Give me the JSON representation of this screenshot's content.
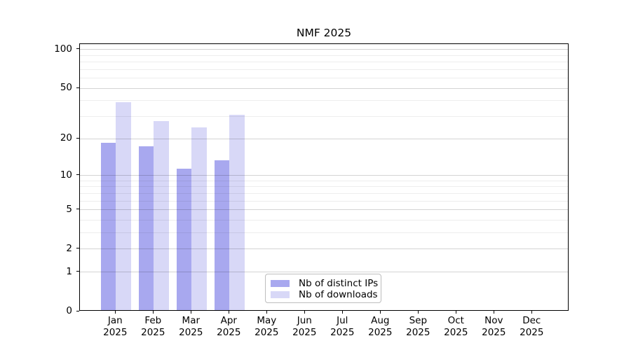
{
  "title": "NMF 2025",
  "chart_data": {
    "type": "bar",
    "title": "NMF 2025",
    "categories": [
      "Jan",
      "Feb",
      "Mar",
      "Apr",
      "May",
      "Jun",
      "Jul",
      "Aug",
      "Sep",
      "Oct",
      "Nov",
      "Dec"
    ],
    "category_year": "2025",
    "series": [
      {
        "name": "Nb of distinct IPs",
        "color": "#a8a8ef",
        "values": [
          18,
          17,
          11,
          13,
          null,
          null,
          null,
          null,
          null,
          null,
          null,
          null
        ]
      },
      {
        "name": "Nb of downloads",
        "color": "#d8d8f7",
        "values": [
          38,
          27,
          24,
          30,
          null,
          null,
          null,
          null,
          null,
          null,
          null,
          null
        ]
      }
    ],
    "xlabel": "",
    "ylabel": "",
    "yscale": "log1p",
    "ylim": [
      0,
      110
    ],
    "yticks": [
      0,
      1,
      2,
      5,
      10,
      20,
      50,
      100
    ],
    "yticks_minor": [
      3,
      4,
      6,
      7,
      8,
      9,
      30,
      40,
      60,
      70,
      80,
      90
    ],
    "grid": "horizontal",
    "grid_above_bars": true,
    "legend_position": "lower center",
    "bar_group": "side-by-side"
  },
  "colors": {
    "spine": "#000000",
    "major_grid": "rgba(0,0,0,0.17)",
    "minor_grid": "rgba(0,0,0,0.07)",
    "text": "#000000"
  }
}
